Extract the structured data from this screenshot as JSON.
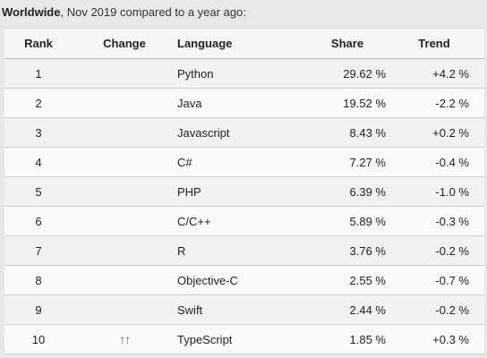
{
  "caption": {
    "bold": "Worldwide",
    "rest": ", Nov 2019 compared to a year ago:"
  },
  "headers": {
    "rank": "Rank",
    "change": "Change",
    "language": "Language",
    "share": "Share",
    "trend": "Trend"
  },
  "rows": [
    {
      "rank": "1",
      "change": "",
      "language": "Python",
      "share": "29.62 %",
      "trend": "+4.2 %"
    },
    {
      "rank": "2",
      "change": "",
      "language": "Java",
      "share": "19.52 %",
      "trend": "-2.2 %"
    },
    {
      "rank": "3",
      "change": "",
      "language": "Javascript",
      "share": "8.43 %",
      "trend": "+0.2 %"
    },
    {
      "rank": "4",
      "change": "",
      "language": "C#",
      "share": "7.27 %",
      "trend": "-0.4 %"
    },
    {
      "rank": "5",
      "change": "",
      "language": "PHP",
      "share": "6.39 %",
      "trend": "-1.0 %"
    },
    {
      "rank": "6",
      "change": "",
      "language": "C/C++",
      "share": "5.89 %",
      "trend": "-0.3 %"
    },
    {
      "rank": "7",
      "change": "",
      "language": "R",
      "share": "3.76 %",
      "trend": "-0.2 %"
    },
    {
      "rank": "8",
      "change": "",
      "language": "Objective-C",
      "share": "2.55 %",
      "trend": "-0.7 %"
    },
    {
      "rank": "9",
      "change": "",
      "language": "Swift",
      "share": "2.44 %",
      "trend": "-0.2 %"
    },
    {
      "rank": "10",
      "change": "up-up-arrow-icon",
      "language": "TypeScript",
      "share": "1.85 %",
      "trend": "+0.3 %"
    }
  ],
  "icons": {
    "up_up_arrow": "↑↑",
    "arrow_color": "#2a9d2a"
  }
}
